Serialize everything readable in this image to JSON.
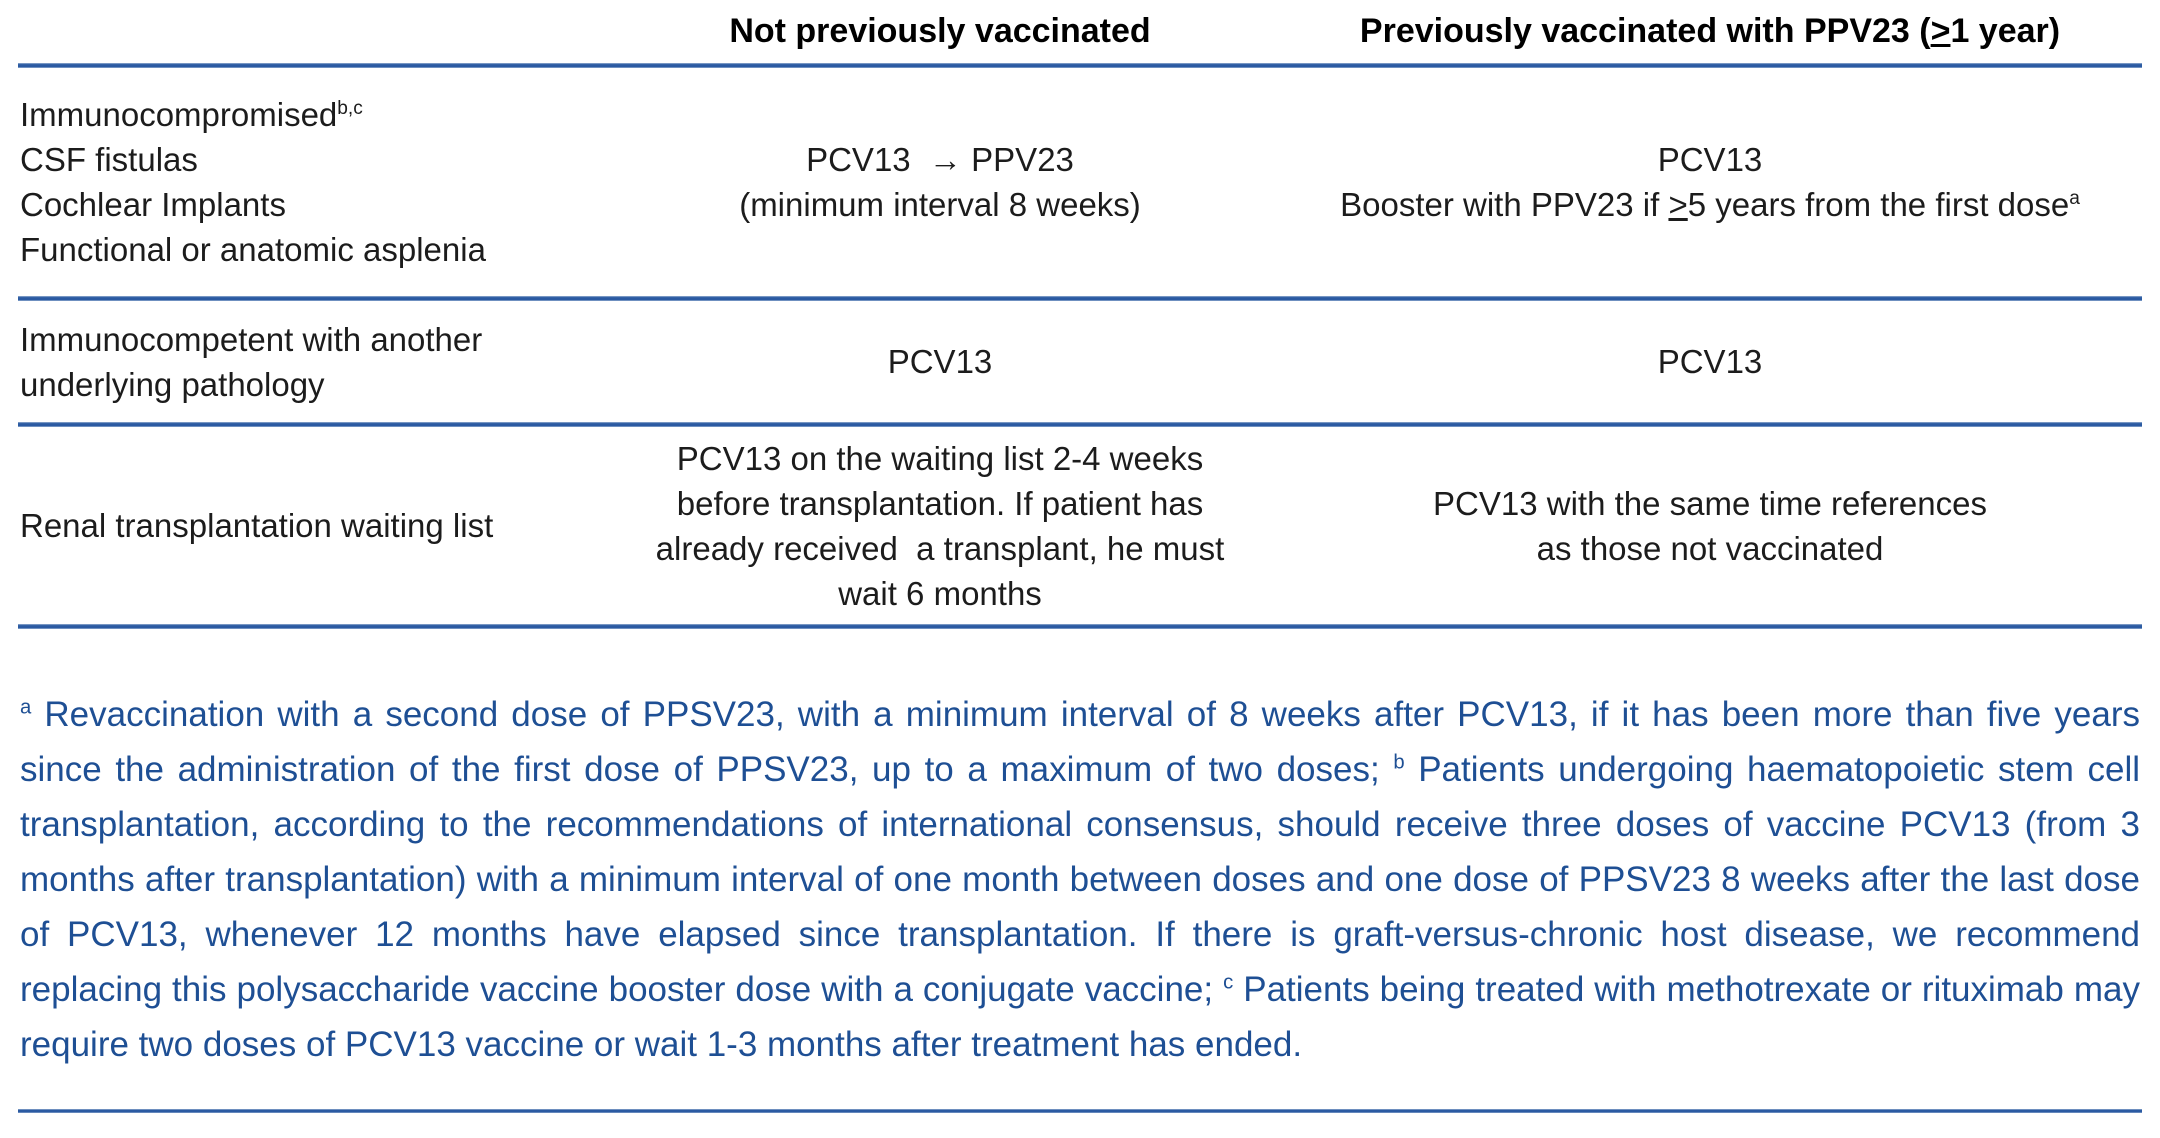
{
  "colors": {
    "rule_blue": "#2b5aa2",
    "rule_edge_blue": "#9db4d4",
    "footnote_blue": "#1e4f94",
    "body_text": "#1c1c1c",
    "header_text": "#000000"
  },
  "table": {
    "col2_header": "Not previously vaccinated",
    "col3_header": [
      {
        "text": "Previously vaccinated with PPV23 ("
      },
      {
        "text": ">",
        "u": true
      },
      {
        "text": "1 year)"
      }
    ],
    "rows": [
      {
        "col1": [
          [
            {
              "text": "Immunocompromised"
            },
            {
              "text": "b,c",
              "sup": true
            }
          ],
          [
            {
              "text": "CSF fistulas"
            }
          ],
          [
            {
              "text": "Cochlear Implants"
            }
          ],
          [
            {
              "text": "Functional or anatomic asplenia"
            }
          ]
        ],
        "col2": [
          [
            {
              "text": "PCV13  → PPV23"
            }
          ],
          [
            {
              "text": "(minimum interval 8 weeks)"
            }
          ]
        ],
        "col3": [
          [
            {
              "text": "PCV13"
            }
          ],
          [
            {
              "text": "Booster with PPV23 if "
            },
            {
              "text": ">",
              "u": true
            },
            {
              "text": "5 years from the first dose"
            },
            {
              "text": "a",
              "sup": true
            }
          ]
        ]
      },
      {
        "col1": [
          [
            {
              "text": "Immunocompetent with another"
            }
          ],
          [
            {
              "text": "underlying pathology"
            }
          ]
        ],
        "col2": [
          [
            {
              "text": "PCV13"
            }
          ]
        ],
        "col3": [
          [
            {
              "text": "PCV13"
            }
          ]
        ]
      },
      {
        "col1": [
          [
            {
              "text": "Renal transplantation waiting list"
            }
          ]
        ],
        "col2": [
          [
            {
              "text": "PCV13 on the waiting list 2-4 weeks"
            }
          ],
          [
            {
              "text": "before transplantation. If patient has"
            }
          ],
          [
            {
              "text": "already received  a transplant, he must"
            }
          ],
          [
            {
              "text": "wait 6 months"
            }
          ]
        ],
        "col3": [
          [
            {
              "text": "PCV13 with the same time references"
            }
          ],
          [
            {
              "text": "as those not vaccinated"
            }
          ]
        ]
      }
    ]
  },
  "footnote": [
    {
      "text": "a",
      "sup": true
    },
    {
      "text": " Revaccination with a second dose of PPSV23, with a minimum interval of 8 weeks after PCV13, if it has been more than five years since the administration of the first dose of PPSV23, up to a maximum of two doses; "
    },
    {
      "text": "b",
      "sup": true
    },
    {
      "text": " Patients undergoing haematopoietic stem cell transplantation, according to the recommendations of international consensus, should receive three doses of vaccine PCV13 (from 3 months after transplantation) with a minimum interval of one month between doses and one dose of PPSV23 8 weeks after the last dose of PCV13, whenever 12 months have elapsed since transplantation. If there is graft-versus-chronic host disease, we recommend replacing this polysaccharide vaccine booster dose with a conjugate vaccine; "
    },
    {
      "text": "c",
      "sup": true
    },
    {
      "text": " Patients being treated with methotrexate or rituximab may require two doses of PCV13 vaccine or wait 1-3 months after treatment has ended."
    }
  ]
}
